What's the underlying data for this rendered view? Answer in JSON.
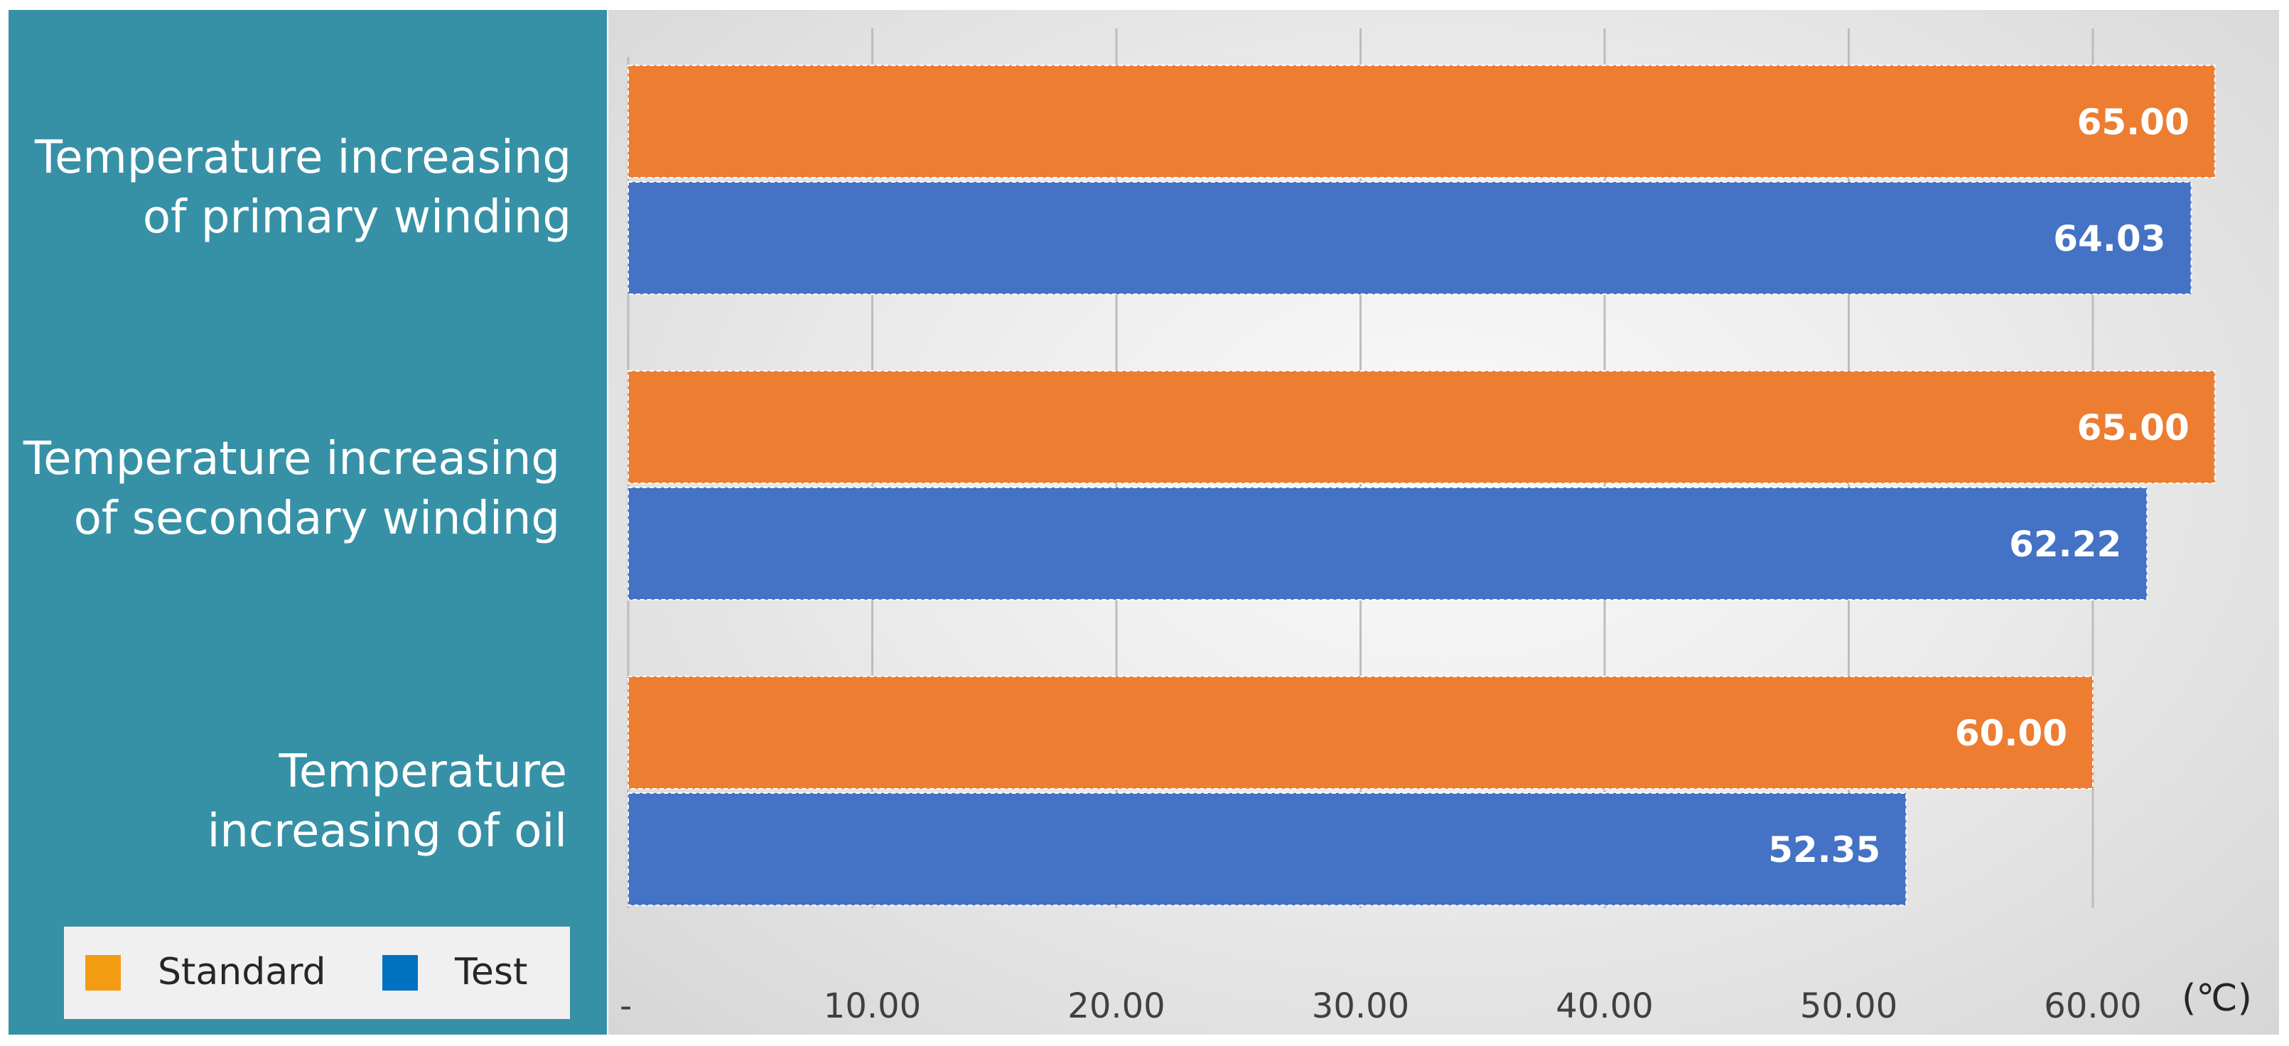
{
  "chart_data": {
    "type": "bar",
    "orientation": "horizontal",
    "categories": [
      "Temperature increasing\nof primary winding",
      "Temperature increasing\nof secondary winding",
      "Temperature\nincreasing of oil"
    ],
    "series": [
      {
        "name": "Standard",
        "color": "#ed7d31",
        "values": [
          65.0,
          65.0,
          60.0
        ],
        "labels": [
          "65.00",
          "65.00",
          "60.00"
        ]
      },
      {
        "name": "Test",
        "color": "#4472c4",
        "values": [
          64.03,
          62.22,
          52.35
        ],
        "labels": [
          "64.03",
          "62.22",
          "52.35"
        ]
      }
    ],
    "x_ticks": [
      "-",
      "10.00",
      "20.00",
      "30.00",
      "40.00",
      "50.00",
      "60.00"
    ],
    "x_tick_values": [
      0,
      10,
      20,
      30,
      40,
      50,
      60
    ],
    "xlim": [
      0,
      70
    ],
    "x_unit": "(℃)",
    "grid": true,
    "legend": {
      "position": "bottom-left",
      "items": [
        {
          "label": "Standard",
          "color": "#f39c12"
        },
        {
          "label": "Test",
          "color": "#0070c0"
        }
      ]
    },
    "title": "",
    "xlabel": "",
    "ylabel": ""
  }
}
